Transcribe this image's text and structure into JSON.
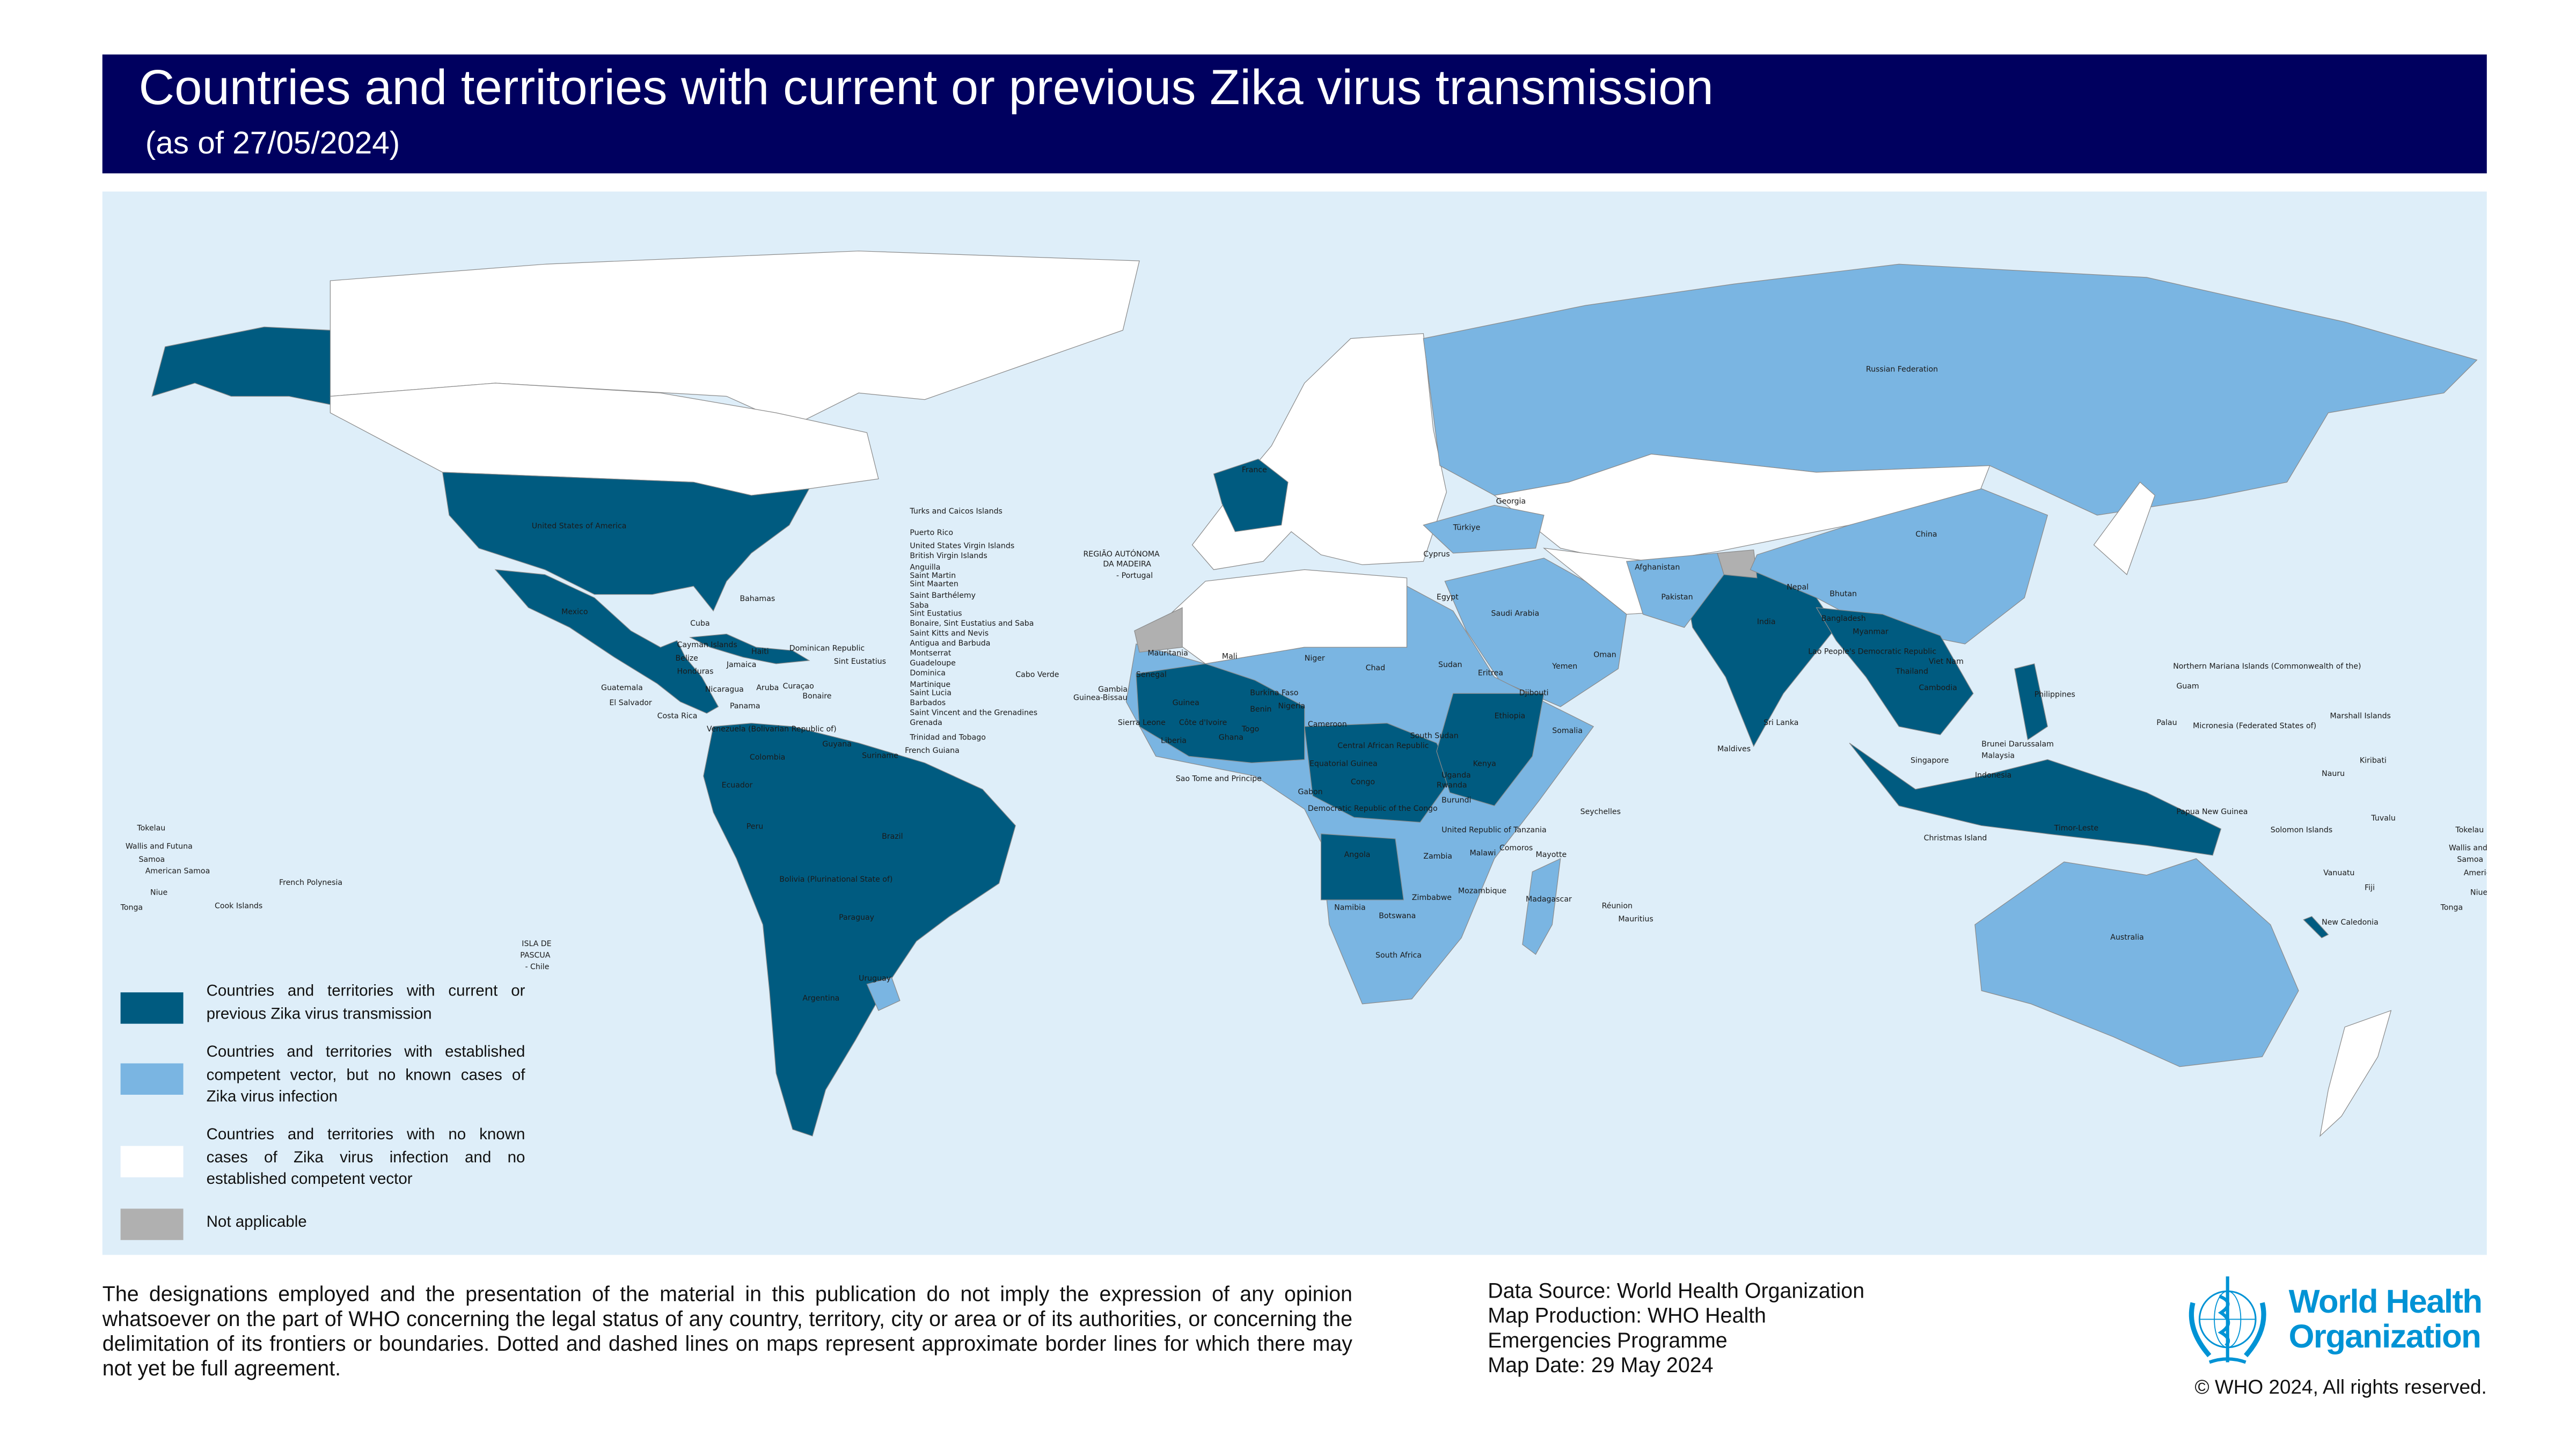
{
  "header": {
    "title": "Countries and territories with current or previous Zika virus transmission",
    "subtitle": "(as of 27/05/2024)"
  },
  "colors": {
    "header_bg": "#00005f",
    "ocean": "#deeef9",
    "current_or_previous_transmission": "#005b80",
    "competent_vector_no_cases": "#7ab5e2",
    "no_cases_no_vector": "#ffffff",
    "not_applicable": "#b0b0b0",
    "who_blue": "#0093d5"
  },
  "legend": [
    {
      "label": "Countries and territories with current or previous Zika virus transmission",
      "color": "#005b80"
    },
    {
      "label": "Countries and territories with established competent vector, but no known cases of Zika virus infection",
      "color": "#7ab5e2"
    },
    {
      "label": "Countries and territories with no known cases of Zika virus infection and no established competent vector",
      "color": "#ffffff"
    },
    {
      "label": "Not applicable",
      "color": "#b0b0b0"
    }
  ],
  "map": {
    "labels": [
      "Russian Federation",
      "United States of America",
      "Mexico",
      "Bahamas",
      "Cuba",
      "Cayman Islands",
      "Belize",
      "Honduras",
      "Jamaica",
      "Haiti",
      "Dominican Republic",
      "Sint Eustatius",
      "Guatemala",
      "El Salvador",
      "Nicaragua",
      "Costa Rica",
      "Aruba",
      "Curaçao",
      "Bonaire",
      "Panama",
      "Venezuela (Bolivarian Republic of)",
      "Guyana",
      "Colombia",
      "Suriname",
      "French Guiana",
      "Ecuador",
      "Peru",
      "Brazil",
      "Bolivia (Plurinational State of)",
      "Paraguay",
      "Uruguay",
      "Argentina",
      "Turks and Caicos Islands",
      "Puerto Rico",
      "United States Virgin Islands",
      "British Virgin Islands",
      "Anguilla",
      "Saint Martin",
      "Sint Maarten",
      "Saint Barthélemy",
      "Saba",
      "Sint Eustatius",
      "Bonaire, Sint Eustatius and Saba",
      "Saint Kitts and Nevis",
      "Antigua and Barbuda",
      "Montserrat",
      "Guadeloupe",
      "Dominica",
      "Martinique",
      "Saint Lucia",
      "Barbados",
      "Saint Vincent and the Grenadines",
      "Grenada",
      "Trinidad and Tobago",
      "REGIÃO AUTÓNOMA",
      "DA MADEIRA",
      "- Portugal",
      "France",
      "Georgia",
      "Türkiye",
      "Cyprus",
      "Egypt",
      "Saudi Arabia",
      "Oman",
      "Yemen",
      "Mauritania",
      "Mali",
      "Niger",
      "Chad",
      "Sudan",
      "Eritrea",
      "Djibouti",
      "Cabo Verde",
      "Senegal",
      "Gambia",
      "Guinea-Bissau",
      "Guinea",
      "Burkina Faso",
      "Sierra Leone",
      "Côte d'Ivoire",
      "Benin",
      "Nigeria",
      "Liberia",
      "Ghana",
      "Togo",
      "Cameroon",
      "Ethiopia",
      "Somalia",
      "South Sudan",
      "Central African Republic",
      "Equatorial Guinea",
      "Kenya",
      "Sao Tome and Principe",
      "Gabon",
      "Congo",
      "Democratic Republic of the Congo",
      "Uganda",
      "Rwanda",
      "Burundi",
      "Seychelles",
      "United Republic of Tanzania",
      "Comoros",
      "Mayotte",
      "Angola",
      "Zambia",
      "Malawi",
      "Mozambique",
      "Madagascar",
      "Zimbabwe",
      "Namibia",
      "Botswana",
      "Réunion",
      "Mauritius",
      "South Africa",
      "Afghanistan",
      "Pakistan",
      "Nepal",
      "Bhutan",
      "China",
      "India",
      "Bangladesh",
      "Myanmar",
      "Lao People's Democratic Republic",
      "Viet Nam",
      "Thailand",
      "Cambodia",
      "Philippines",
      "Sri Lanka",
      "Maldives",
      "Singapore",
      "Brunei Darussalam",
      "Malaysia",
      "Indonesia",
      "Christmas Island",
      "Timor-Leste",
      "Papua New Guinea",
      "Solomon Islands",
      "Palau",
      "Guam",
      "Northern Mariana Islands (Commonwealth of the)",
      "Micronesia (Federated States of)",
      "Marshall Islands",
      "Kiribati",
      "Nauru",
      "Tuvalu",
      "Vanuatu",
      "Fiji",
      "New Caledonia",
      "Tonga",
      "Tokelau",
      "Wallis and Futuna",
      "Samoa",
      "American Samoa",
      "Niue",
      "Australia",
      "Tokelau",
      "Wallis and Futuna",
      "Samoa",
      "American Samoa",
      "Niue",
      "Tonga",
      "Cook Islands",
      "French Polynesia",
      "ISLA DE",
      "PASCUA",
      "- Chile"
    ]
  },
  "footer": {
    "disclaimer": "The designations employed and the presentation of the material in this publication do not imply the expression of any opinion whatsoever on the part of WHO concerning the legal status of any country, territory, city or area or of its authorities, or concerning the delimitation of its frontiers or boundaries. Dotted and dashed lines on maps represent approximate border lines for which there may not yet be full agreement.",
    "data_source": "Data Source: World Health Organization",
    "map_production_1": "Map Production: WHO Health",
    "map_production_2": "Emergencies Programme",
    "map_date": "Map Date: 29 May 2024",
    "logo_line1": "World Health",
    "logo_line2": "Organization",
    "copyright": "© WHO 2024, All rights reserved."
  }
}
